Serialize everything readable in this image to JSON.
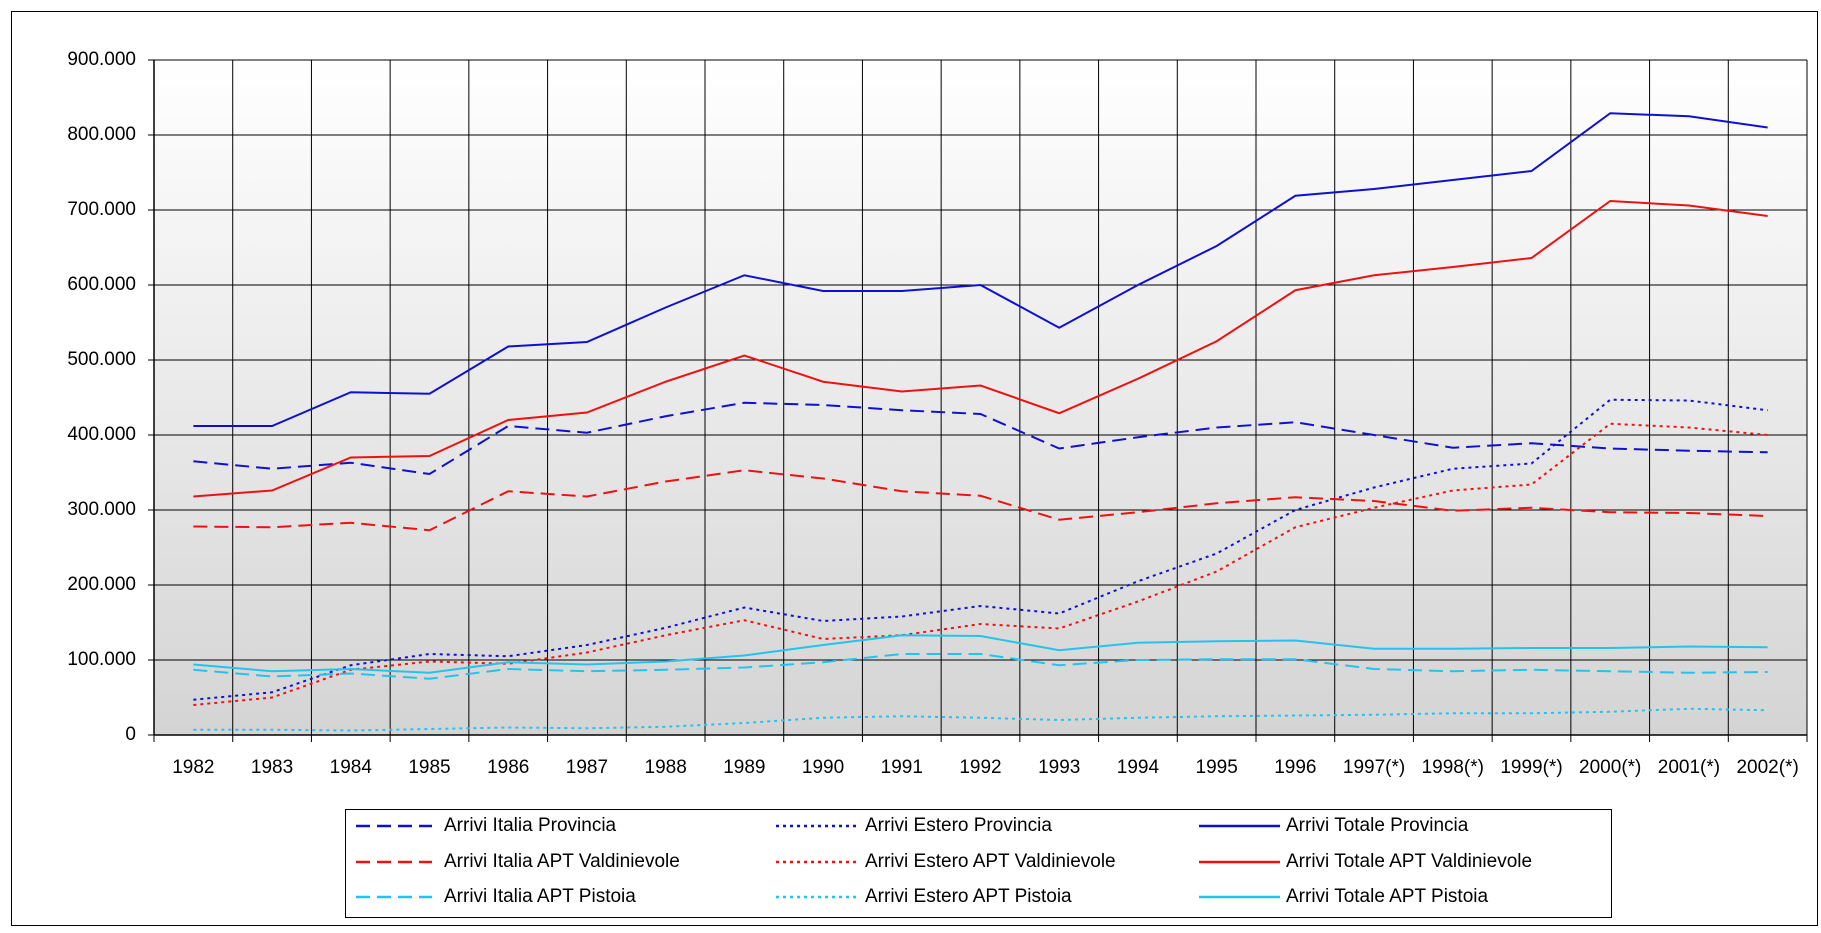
{
  "chart_data": {
    "type": "line",
    "categories": [
      "1982",
      "1983",
      "1984",
      "1985",
      "1986",
      "1987",
      "1988",
      "1989",
      "1990",
      "1991",
      "1992",
      "1993",
      "1994",
      "1995",
      "1996",
      "1997(*)",
      "1998(*)",
      "1999(*)",
      "2000(*)",
      "2001(*)",
      "2002(*)"
    ],
    "ylim": [
      0,
      900000
    ],
    "yticks": [
      0,
      {
        "value": 100000,
        "label": "100.000"
      },
      {
        "value": 200000,
        "label": "200.000"
      },
      {
        "value": 300000,
        "label": "300.000"
      },
      {
        "value": 400000,
        "label": "400.000"
      },
      {
        "value": 500000,
        "label": "500.000"
      },
      {
        "value": 600000,
        "label": "600.000"
      },
      {
        "value": 700000,
        "label": "700.000"
      },
      {
        "value": 800000,
        "label": "800.000"
      },
      {
        "value": 900000,
        "label": "900.000"
      }
    ],
    "grid": true,
    "series": [
      {
        "name": "Arrivi Italia Provincia",
        "color": "#1010d0",
        "line_style": "dashed",
        "values": [
          365000,
          355000,
          363000,
          348000,
          412000,
          403000,
          425000,
          443000,
          440000,
          433000,
          428000,
          382000,
          397000,
          410000,
          417000,
          400000,
          383000,
          389000,
          382000,
          379000,
          377000
        ]
      },
      {
        "name": "Arrivi Estero Provincia",
        "color": "#1010d0",
        "line_style": "dotted",
        "values": [
          47000,
          57000,
          93000,
          108000,
          105000,
          120000,
          143000,
          170000,
          152000,
          158000,
          172000,
          162000,
          205000,
          242000,
          300000,
          330000,
          355000,
          362000,
          447000,
          446000,
          433000
        ]
      },
      {
        "name": "Arrivi Totale Provincia",
        "color": "#1010d0",
        "line_style": "solid",
        "values": [
          412000,
          412000,
          457000,
          455000,
          518000,
          524000,
          570000,
          613000,
          592000,
          592000,
          600000,
          543000,
          600000,
          652000,
          719000,
          728000,
          740000,
          752000,
          829000,
          825000,
          810000
        ]
      },
      {
        "name": "Arrivi Italia APT Valdinievole",
        "color": "#ee1111",
        "line_style": "dashed",
        "values": [
          278000,
          277000,
          283000,
          273000,
          325000,
          318000,
          338000,
          353000,
          342000,
          325000,
          319000,
          287000,
          297000,
          309000,
          317000,
          312000,
          299000,
          303000,
          297000,
          296000,
          292000
        ]
      },
      {
        "name": "Arrivi Estero APT Valdinievole",
        "color": "#ee1111",
        "line_style": "dotted",
        "values": [
          40000,
          50000,
          87000,
          98000,
          95000,
          110000,
          133000,
          153000,
          128000,
          133000,
          148000,
          142000,
          178000,
          218000,
          277000,
          303000,
          326000,
          334000,
          415000,
          410000,
          400000
        ]
      },
      {
        "name": "Arrivi Totale APT Valdinievole",
        "color": "#ee1111",
        "line_style": "solid",
        "values": [
          318000,
          326000,
          370000,
          372000,
          420000,
          430000,
          471000,
          506000,
          471000,
          458000,
          466000,
          429000,
          475000,
          525000,
          593000,
          613000,
          624000,
          636000,
          712000,
          706000,
          692000
        ]
      },
      {
        "name": "Arrivi Italia APT Pistoia",
        "color": "#22c4ee",
        "line_style": "dashed",
        "values": [
          87000,
          78000,
          82000,
          75000,
          88000,
          85000,
          87000,
          90000,
          97000,
          108000,
          108000,
          93000,
          100000,
          101000,
          101000,
          88000,
          85000,
          87000,
          85000,
          83000,
          84000
        ]
      },
      {
        "name": "Arrivi Estero APT Pistoia",
        "color": "#22c4ee",
        "line_style": "dotted",
        "values": [
          7000,
          7000,
          6000,
          8000,
          10000,
          9000,
          11000,
          16000,
          23000,
          25000,
          23000,
          20000,
          23000,
          25000,
          26000,
          27000,
          29000,
          29000,
          31000,
          35000,
          33000
        ]
      },
      {
        "name": "Arrivi Totale APT Pistoia",
        "color": "#22c4ee",
        "line_style": "solid",
        "values": [
          94000,
          85000,
          88000,
          83000,
          97000,
          94000,
          98000,
          106000,
          120000,
          133000,
          132000,
          113000,
          123000,
          125000,
          126000,
          115000,
          115000,
          116000,
          116000,
          118000,
          117000
        ]
      }
    ]
  }
}
